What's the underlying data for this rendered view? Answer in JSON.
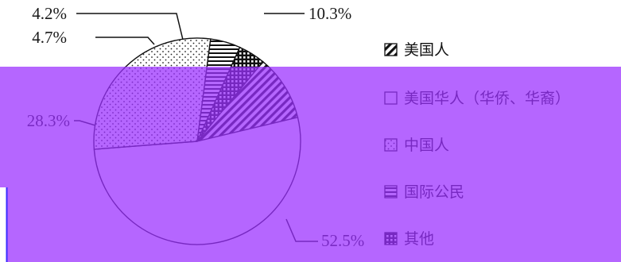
{
  "chart_data": {
    "type": "pie",
    "title": "",
    "slices": [
      {
        "label": "美国人",
        "value": 10.3,
        "display": "10.3%",
        "pattern": "diagonal-hatch"
      },
      {
        "label": "美国华人（华侨、华裔）",
        "value": 52.5,
        "display": "52.5%",
        "pattern": "blank"
      },
      {
        "label": "中国人",
        "value": 28.3,
        "display": "28.3%",
        "pattern": "dotted"
      },
      {
        "label": "国际公民",
        "value": 4.7,
        "display": "4.7%",
        "pattern": "horizontal-lines"
      },
      {
        "label": "其他",
        "value": 4.2,
        "display": "4.2%",
        "pattern": "grid"
      }
    ],
    "legend_position": "right",
    "colors": {
      "outline": "#111111",
      "overlay": "#9b30ff",
      "overlay_border": "#3a2cff"
    }
  }
}
